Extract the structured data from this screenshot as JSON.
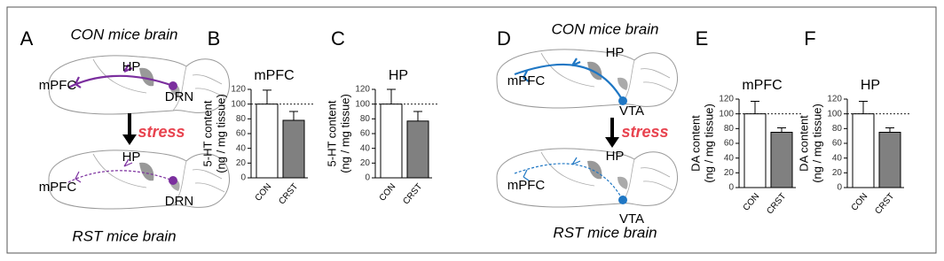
{
  "diagrams": [
    {
      "panel_label": "A",
      "top_title": "CON mice brain",
      "bottom_title": "RST mice brain",
      "arrow_label": "stress",
      "color": "#7b2f9e",
      "top_labels": [
        "mPFC",
        "HP",
        "DRN"
      ],
      "bottom_labels": [
        "mPFC",
        "HP",
        "DRN"
      ]
    },
    {
      "panel_label": "D",
      "top_title": "CON mice brain",
      "bottom_title": "RST mice brain",
      "arrow_label": "stress",
      "color": "#1f77c4",
      "top_labels": [
        "mPFC",
        "HP",
        "VTA"
      ],
      "bottom_labels": [
        "mPFC",
        "HP",
        "VTA"
      ]
    }
  ],
  "chart_data": [
    {
      "type": "bar",
      "panel_label": "B",
      "title": "mPFC",
      "ylabel": [
        "5-HT content",
        "(ng / mg tissue)"
      ],
      "categories": [
        "CON",
        "CRST"
      ],
      "values": [
        100,
        78
      ],
      "errors": [
        19,
        12
      ],
      "colors": [
        "#ffffff",
        "#808080"
      ],
      "ylim": [
        0,
        120
      ],
      "yticks": [
        0,
        20,
        40,
        60,
        80,
        100,
        120
      ],
      "reference_line": 100
    },
    {
      "type": "bar",
      "panel_label": "C",
      "title": "HP",
      "ylabel": [
        "5-HT content",
        "(ng / mg tissue)"
      ],
      "categories": [
        "CON",
        "CRST"
      ],
      "values": [
        100,
        77
      ],
      "errors": [
        20,
        13
      ],
      "colors": [
        "#ffffff",
        "#808080"
      ],
      "ylim": [
        0,
        120
      ],
      "yticks": [
        0,
        20,
        40,
        60,
        80,
        100,
        120
      ],
      "reference_line": 100
    },
    {
      "type": "bar",
      "panel_label": "E",
      "title": "mPFC",
      "ylabel": [
        "DA content",
        "(ng / mg tissue)"
      ],
      "categories": [
        "CON",
        "CRST"
      ],
      "values": [
        100,
        75
      ],
      "errors": [
        17,
        6
      ],
      "colors": [
        "#ffffff",
        "#808080"
      ],
      "ylim": [
        0,
        120
      ],
      "yticks": [
        0,
        20,
        40,
        60,
        80,
        100,
        120
      ],
      "reference_line": 100
    },
    {
      "type": "bar",
      "panel_label": "F",
      "title": "HP",
      "ylabel": [
        "DA content",
        "(ng / mg tissue)"
      ],
      "categories": [
        "CON",
        "CRST"
      ],
      "values": [
        100,
        75
      ],
      "errors": [
        17,
        6
      ],
      "colors": [
        "#ffffff",
        "#808080"
      ],
      "ylim": [
        0,
        120
      ],
      "yticks": [
        0,
        20,
        40,
        60,
        80,
        100,
        120
      ],
      "reference_line": 100
    }
  ]
}
